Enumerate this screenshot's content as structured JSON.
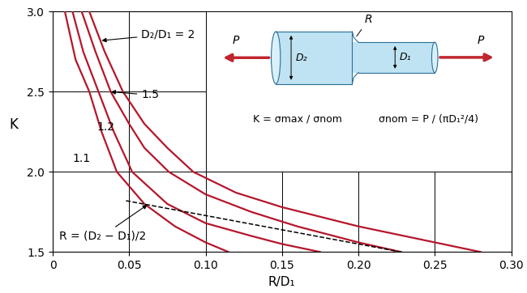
{
  "chart_data": {
    "type": "line",
    "x_label": "R/D₁",
    "y_label": "K",
    "xlim": [
      0,
      0.3
    ],
    "ylim": [
      1.5,
      3.0
    ],
    "xticks": [
      0,
      0.05,
      {
        "value": 0.1,
        "label": "0.10"
      },
      0.15,
      {
        "value": 0.2,
        "label": "0.20"
      },
      0.25,
      {
        "value": 0.3,
        "label": "0.30"
      }
    ],
    "yticks": [
      1.5,
      2.0,
      2.5,
      3.0
    ],
    "grid": true,
    "series": [
      {
        "name": "1.1",
        "color": "#b5162b",
        "line_style": "solid",
        "x": [
          0.008,
          0.015,
          0.024,
          0.032,
          0.042,
          0.06,
          0.08,
          0.1,
          0.115
        ],
        "values": [
          3.0,
          2.7,
          2.5,
          2.25,
          2.0,
          1.8,
          1.66,
          1.56,
          1.5
        ]
      },
      {
        "name": "1.2",
        "color": "#b5162b",
        "line_style": "solid",
        "x": [
          0.013,
          0.02,
          0.03,
          0.04,
          0.052,
          0.075,
          0.1,
          0.13,
          0.15,
          0.175
        ],
        "values": [
          3.0,
          2.75,
          2.5,
          2.25,
          2.0,
          1.8,
          1.68,
          1.6,
          1.55,
          1.5
        ]
      },
      {
        "name": "1.5",
        "color": "#b5162b",
        "line_style": "solid",
        "x": [
          0.019,
          0.028,
          0.038,
          0.05,
          0.06,
          0.076,
          0.1,
          0.13,
          0.16,
          0.2,
          0.228
        ],
        "values": [
          3.0,
          2.75,
          2.5,
          2.3,
          2.15,
          2.0,
          1.86,
          1.75,
          1.66,
          1.56,
          1.5
        ]
      },
      {
        "name": "D₂/D₁ = 2",
        "color": "#b5162b",
        "line_style": "solid",
        "x": [
          0.024,
          0.034,
          0.046,
          0.06,
          0.075,
          0.092,
          0.12,
          0.15,
          0.2,
          0.25,
          0.28
        ],
        "values": [
          3.0,
          2.75,
          2.5,
          2.3,
          2.15,
          2.0,
          1.87,
          1.78,
          1.66,
          1.56,
          1.5
        ]
      },
      {
        "name": "R = (D₂ − D₁)/2",
        "color": "#000000",
        "line_style": "dashed",
        "x": [
          0.048,
          0.228
        ],
        "values": [
          1.82,
          1.5
        ]
      }
    ],
    "diagram": {
      "load": "P",
      "radius": "R",
      "large_diameter": "D₂",
      "small_diameter": "D₁",
      "formula_k": "K = σmax / σnom",
      "formula_nom": "σnom = P / (πD₁²/4)"
    }
  }
}
